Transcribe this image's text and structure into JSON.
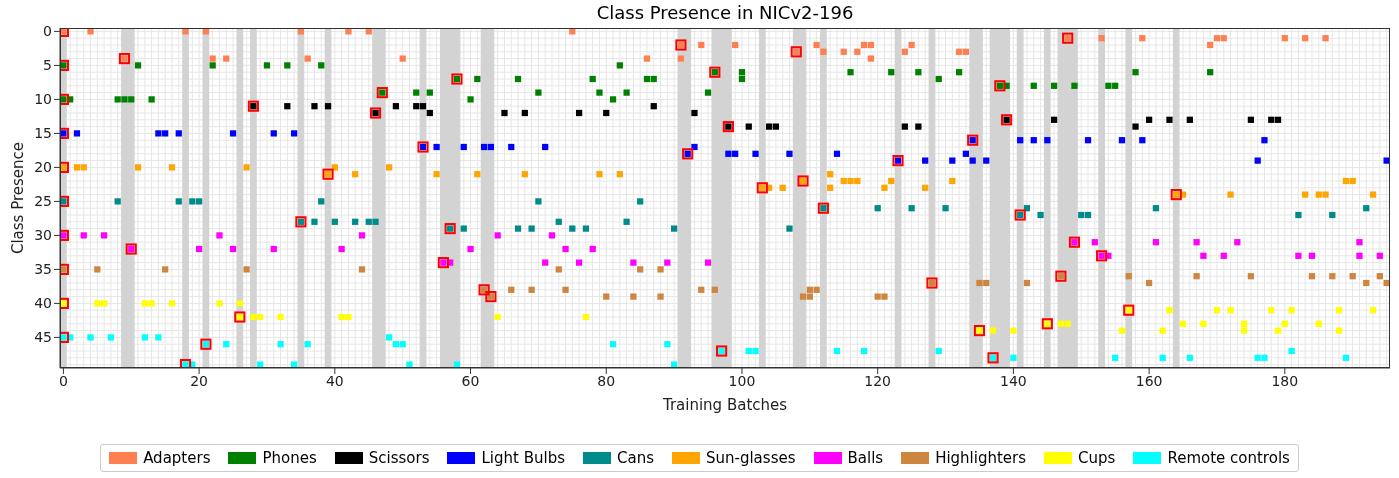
{
  "chart_data": {
    "type": "scatter",
    "title": "Class Presence in NICv2-196",
    "xlabel": "Training Batches",
    "ylabel": "Class Presence",
    "xlim": [
      -0.5,
      195.5
    ],
    "xticks": [
      0,
      20,
      40,
      60,
      80,
      100,
      120,
      140,
      160,
      180
    ],
    "ylim": [
      49.5,
      -0.5
    ],
    "yticks": [
      0,
      5,
      10,
      15,
      20,
      25,
      30,
      35,
      40,
      45
    ],
    "grid": true,
    "legend": "bottom",
    "marker": "square",
    "bands": [
      {
        "axis": "x",
        "from": -0.5,
        "to": 0.5,
        "color": "#d3d3d3"
      },
      {
        "axis": "x",
        "from": 8.5,
        "to": 10.5,
        "color": "#d3d3d3"
      },
      {
        "axis": "x",
        "from": 17.5,
        "to": 18.5,
        "color": "#d3d3d3"
      },
      {
        "axis": "x",
        "from": 20.5,
        "to": 21.5,
        "color": "#d3d3d3"
      },
      {
        "axis": "x",
        "from": 25.5,
        "to": 26.5,
        "color": "#d3d3d3"
      },
      {
        "axis": "x",
        "from": 27.5,
        "to": 28.5,
        "color": "#d3d3d3"
      },
      {
        "axis": "x",
        "from": 34.5,
        "to": 35.5,
        "color": "#d3d3d3"
      },
      {
        "axis": "x",
        "from": 38.5,
        "to": 39.5,
        "color": "#d3d3d3"
      },
      {
        "axis": "x",
        "from": 45.5,
        "to": 47.5,
        "color": "#d3d3d3"
      },
      {
        "axis": "x",
        "from": 52.5,
        "to": 53.5,
        "color": "#d3d3d3"
      },
      {
        "axis": "x",
        "from": 55.5,
        "to": 58.5,
        "color": "#d3d3d3"
      },
      {
        "axis": "x",
        "from": 61.5,
        "to": 63.5,
        "color": "#d3d3d3"
      },
      {
        "axis": "x",
        "from": 90.5,
        "to": 92.5,
        "color": "#d3d3d3"
      },
      {
        "axis": "x",
        "from": 95.5,
        "to": 98.5,
        "color": "#d3d3d3"
      },
      {
        "axis": "x",
        "from": 102.5,
        "to": 103.5,
        "color": "#d3d3d3"
      },
      {
        "axis": "x",
        "from": 107.5,
        "to": 109.5,
        "color": "#d3d3d3"
      },
      {
        "axis": "x",
        "from": 111.5,
        "to": 112.5,
        "color": "#d3d3d3"
      },
      {
        "axis": "x",
        "from": 122.5,
        "to": 123.5,
        "color": "#d3d3d3"
      },
      {
        "axis": "x",
        "from": 127.5,
        "to": 128.5,
        "color": "#d3d3d3"
      },
      {
        "axis": "x",
        "from": 133.5,
        "to": 135.5,
        "color": "#d3d3d3"
      },
      {
        "axis": "x",
        "from": 136.5,
        "to": 139.5,
        "color": "#d3d3d3"
      },
      {
        "axis": "x",
        "from": 140.5,
        "to": 141.5,
        "color": "#d3d3d3"
      },
      {
        "axis": "x",
        "from": 144.5,
        "to": 145.5,
        "color": "#d3d3d3"
      },
      {
        "axis": "x",
        "from": 146.5,
        "to": 149.5,
        "color": "#d3d3d3"
      },
      {
        "axis": "x",
        "from": 152.5,
        "to": 153.5,
        "color": "#d3d3d3"
      },
      {
        "axis": "x",
        "from": 156.5,
        "to": 157.5,
        "color": "#d3d3d3"
      },
      {
        "axis": "x",
        "from": 163.5,
        "to": 164.5,
        "color": "#d3d3d3"
      }
    ],
    "series": [
      {
        "name": "Adapters",
        "color": "#ff7f50",
        "x": [
          0,
          4,
          18,
          21,
          9,
          22,
          24,
          35,
          42,
          45,
          36,
          50,
          75,
          91,
          94,
          86,
          91,
          99,
          111,
          118,
          119,
          125,
          108,
          112,
          115,
          117,
          124,
          119,
          148,
          153,
          159,
          132,
          133,
          170,
          171,
          180,
          183,
          186,
          169
        ],
        "values": [
          0,
          0,
          0,
          0,
          4,
          4,
          4,
          0,
          0,
          0,
          4,
          4,
          0,
          2,
          2,
          4,
          4,
          2,
          2,
          2,
          2,
          2,
          3,
          3,
          3,
          3,
          3,
          4,
          1,
          1,
          1,
          3,
          3,
          1,
          1,
          1,
          1,
          1,
          2
        ]
      },
      {
        "name": "Phones",
        "color": "#008000",
        "x": [
          0,
          11,
          22,
          30,
          0,
          1,
          8,
          9,
          10,
          13,
          33,
          38,
          58,
          61,
          47,
          52,
          54,
          60,
          82,
          96,
          67,
          78,
          86,
          87,
          70,
          79,
          83,
          95,
          81,
          100,
          100,
          116,
          122,
          126,
          129,
          132,
          158,
          138,
          139,
          143,
          146,
          149,
          154,
          155,
          169
        ],
        "values": [
          5,
          5,
          5,
          5,
          10,
          10,
          10,
          10,
          10,
          10,
          5,
          5,
          7,
          7,
          9,
          9,
          9,
          10,
          5,
          6,
          7,
          7,
          7,
          7,
          9,
          9,
          9,
          9,
          10,
          6,
          7,
          6,
          6,
          6,
          7,
          6,
          6,
          8,
          8,
          8,
          8,
          8,
          8,
          8,
          6
        ]
      },
      {
        "name": "Scissors",
        "color": "#000000",
        "x": [
          28,
          33,
          37,
          39,
          49,
          52,
          53,
          46,
          54,
          87,
          65,
          68,
          76,
          80,
          93,
          98,
          101,
          104,
          105,
          124,
          126,
          139,
          146,
          160,
          163,
          158,
          166,
          175,
          178,
          179
        ],
        "values": [
          11,
          11,
          11,
          11,
          11,
          11,
          11,
          12,
          12,
          11,
          12,
          12,
          12,
          12,
          12,
          14,
          14,
          14,
          14,
          14,
          14,
          13,
          13,
          13,
          13,
          14,
          13,
          13,
          13,
          13
        ]
      },
      {
        "name": "Light Bulbs",
        "color": "#0000ff",
        "x": [
          0,
          2,
          14,
          15,
          17,
          25,
          31,
          34,
          53,
          55,
          59,
          62,
          63,
          66,
          71,
          93,
          92,
          98,
          99,
          102,
          107,
          114,
          123,
          127,
          134,
          141,
          143,
          145,
          151,
          156,
          159,
          133,
          131,
          134,
          136,
          177,
          176,
          195
        ],
        "values": [
          15,
          15,
          15,
          15,
          15,
          15,
          15,
          15,
          17,
          17,
          17,
          17,
          17,
          17,
          17,
          17,
          18,
          18,
          18,
          18,
          18,
          18,
          19,
          19,
          16,
          16,
          16,
          16,
          16,
          16,
          16,
          18,
          19,
          19,
          19,
          16,
          19,
          19
        ]
      },
      {
        "name": "Cans",
        "color": "#008b8b",
        "x": [
          0,
          8,
          17,
          19,
          20,
          38,
          35,
          37,
          40,
          43,
          45,
          46,
          57,
          59,
          70,
          85,
          73,
          83,
          67,
          69,
          75,
          77,
          90,
          112,
          120,
          125,
          130,
          107,
          142,
          161,
          141,
          144,
          150,
          151,
          192,
          182,
          187
        ],
        "values": [
          25,
          25,
          25,
          25,
          25,
          25,
          28,
          28,
          28,
          28,
          28,
          28,
          29,
          29,
          25,
          25,
          28,
          28,
          29,
          29,
          29,
          29,
          29,
          26,
          26,
          26,
          26,
          29,
          26,
          26,
          27,
          27,
          27,
          27,
          26,
          27,
          27
        ]
      },
      {
        "name": "Sun-glasses",
        "color": "#ffa500",
        "x": [
          0,
          2,
          3,
          11,
          16,
          27,
          40,
          48,
          39,
          43,
          55,
          61,
          68,
          79,
          82,
          113,
          109,
          115,
          116,
          117,
          122,
          103,
          104,
          106,
          113,
          121,
          127,
          131,
          189,
          190,
          164,
          165,
          172,
          183,
          185,
          186,
          193
        ],
        "values": [
          20,
          20,
          20,
          20,
          20,
          20,
          20,
          20,
          21,
          21,
          21,
          21,
          21,
          21,
          21,
          21,
          22,
          22,
          22,
          22,
          22,
          23,
          23,
          23,
          23,
          23,
          23,
          22,
          22,
          22,
          24,
          24,
          24,
          24,
          24,
          24,
          24
        ]
      },
      {
        "name": "Balls",
        "color": "#ff00ff",
        "x": [
          0,
          3,
          6,
          23,
          10,
          20,
          25,
          31,
          44,
          64,
          41,
          60,
          56,
          57,
          72,
          74,
          78,
          71,
          76,
          84,
          89,
          95,
          149,
          152,
          161,
          153,
          154,
          167,
          173,
          191,
          168,
          171,
          182,
          184,
          191,
          194
        ],
        "values": [
          30,
          30,
          30,
          30,
          32,
          32,
          32,
          32,
          30,
          30,
          32,
          32,
          34,
          34,
          30,
          32,
          32,
          34,
          34,
          34,
          34,
          34,
          31,
          31,
          31,
          33,
          33,
          31,
          31,
          31,
          33,
          33,
          33,
          33,
          33,
          33
        ]
      },
      {
        "name": "Highlighters",
        "color": "#cd853f",
        "x": [
          0,
          5,
          15,
          27,
          44,
          62,
          63,
          73,
          85,
          88,
          66,
          69,
          74,
          94,
          96,
          80,
          84,
          88,
          128,
          110,
          111,
          109,
          110,
          120,
          121,
          147,
          157,
          135,
          136,
          142,
          160,
          167,
          175,
          184,
          187,
          190,
          194,
          192,
          195
        ],
        "values": [
          35,
          35,
          35,
          35,
          35,
          38,
          39,
          35,
          35,
          35,
          38,
          38,
          38,
          38,
          38,
          39,
          39,
          39,
          37,
          38,
          38,
          39,
          39,
          39,
          39,
          36,
          36,
          37,
          37,
          37,
          37,
          36,
          36,
          36,
          36,
          36,
          36,
          37,
          37
        ]
      },
      {
        "name": "Cups",
        "color": "#ffff00",
        "x": [
          0,
          5,
          6,
          12,
          13,
          16,
          23,
          26,
          26,
          28,
          29,
          32,
          41,
          42,
          64,
          77,
          157,
          163,
          145,
          147,
          148,
          135,
          137,
          140,
          156,
          162,
          170,
          172,
          178,
          181,
          188,
          193,
          165,
          168,
          174,
          180,
          185,
          174,
          179,
          188
        ],
        "values": [
          40,
          40,
          40,
          40,
          40,
          40,
          40,
          40,
          42,
          42,
          42,
          42,
          42,
          42,
          42,
          42,
          41,
          41,
          43,
          43,
          43,
          44,
          44,
          44,
          44,
          44,
          41,
          41,
          41,
          41,
          41,
          41,
          43,
          43,
          43,
          43,
          43,
          44,
          44,
          44
        ]
      },
      {
        "name": "Remote controls",
        "color": "#00ffff",
        "x": [
          0,
          1,
          4,
          7,
          12,
          14,
          21,
          24,
          18,
          19,
          29,
          48,
          32,
          36,
          49,
          50,
          34,
          51,
          58,
          81,
          89,
          97,
          90,
          101,
          102,
          114,
          118,
          129,
          137,
          140,
          155,
          162,
          181,
          166,
          176,
          177,
          189
        ],
        "values": [
          45,
          45,
          45,
          45,
          45,
          45,
          46,
          46,
          49,
          49,
          49,
          45,
          46,
          46,
          46,
          46,
          49,
          49,
          49,
          46,
          46,
          47,
          49,
          47,
          47,
          47,
          47,
          47,
          48,
          48,
          48,
          48,
          47,
          48,
          48,
          48,
          48
        ]
      },
      {
        "color": "#ff0000",
        "x": [
          0,
          0,
          0,
          0,
          0,
          0,
          0,
          0,
          0,
          0,
          9,
          10,
          18,
          21,
          26,
          28,
          35,
          39,
          46,
          47,
          53,
          56,
          57,
          58,
          62,
          63,
          91,
          92,
          96,
          97,
          98,
          103,
          108,
          109,
          112,
          123,
          128,
          134,
          135,
          137,
          138,
          139,
          141,
          145,
          147,
          148,
          149,
          153,
          157,
          164
        ],
        "values": [
          0,
          5,
          10,
          15,
          20,
          25,
          30,
          35,
          40,
          45,
          4,
          32,
          49,
          46,
          42,
          11,
          28,
          21,
          12,
          9,
          17,
          34,
          29,
          7,
          38,
          39,
          2,
          18,
          6,
          47,
          14,
          23,
          3,
          22,
          26,
          19,
          37,
          16,
          44,
          48,
          8,
          13,
          27,
          43,
          36,
          1,
          31,
          33,
          41,
          24
        ]
      }
    ]
  }
}
